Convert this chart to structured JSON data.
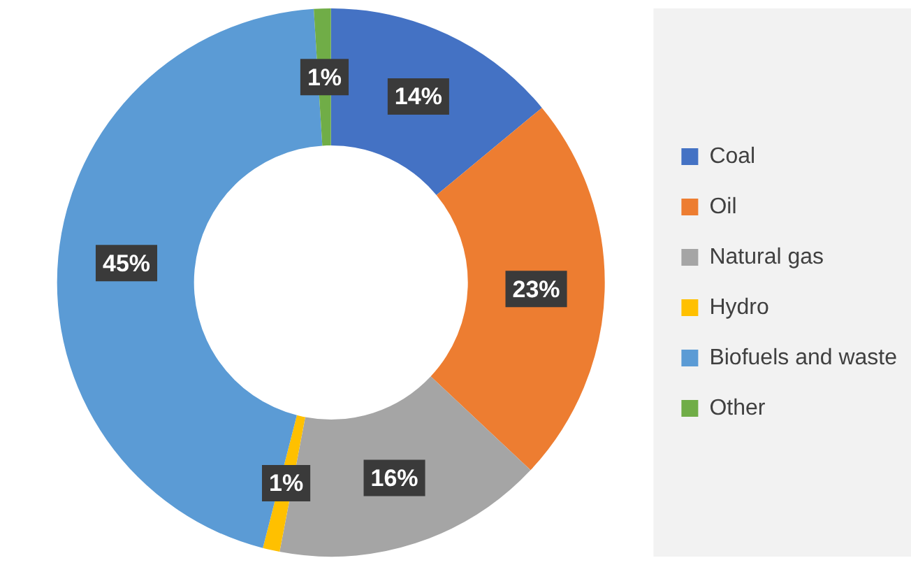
{
  "chart_data": {
    "type": "donut",
    "categories": [
      "Coal",
      "Oil",
      "Natural gas",
      "Hydro",
      "Biofuels and waste",
      "Other"
    ],
    "values": [
      14,
      23,
      16,
      1,
      45,
      1
    ],
    "colors": [
      "#4472c4",
      "#ed7d31",
      "#a5a5a5",
      "#ffc000",
      "#5b9bd5",
      "#70ad47"
    ],
    "value_labels": [
      "14%",
      "23%",
      "16%",
      "1%",
      "45%",
      "1%"
    ],
    "legend": "right"
  }
}
